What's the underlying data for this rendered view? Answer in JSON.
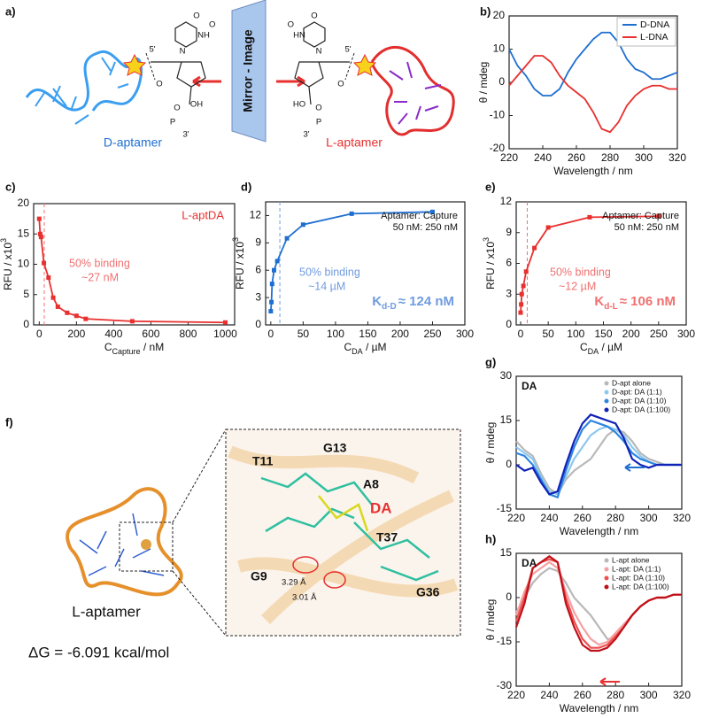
{
  "chart_data": [
    {
      "type": "line",
      "panel_label": "b)",
      "x": [
        220,
        225,
        230,
        235,
        240,
        245,
        250,
        255,
        260,
        265,
        270,
        275,
        280,
        285,
        290,
        295,
        300,
        305,
        310,
        315,
        320
      ],
      "series": [
        {
          "name": "D-DNA",
          "color": "#1f6fd1",
          "values": [
            10,
            5,
            2,
            -2,
            -4,
            -4,
            -2,
            3,
            7,
            10,
            13,
            15,
            15,
            12,
            7,
            4,
            3,
            1,
            1,
            2,
            3
          ]
        },
        {
          "name": "L-DNA",
          "color": "#e8302f",
          "values": [
            -1,
            2,
            5,
            8,
            8,
            6,
            2,
            -1,
            -3,
            -5,
            -9,
            -14,
            -15,
            -12,
            -7,
            -4,
            -2,
            -1,
            -1,
            -2,
            -2
          ]
        }
      ],
      "xlim": [
        220,
        320
      ],
      "xticks": [
        220,
        240,
        260,
        280,
        300,
        320
      ],
      "ylim": [
        -20,
        20
      ],
      "yticks": [
        -20,
        -10,
        0,
        10,
        20
      ],
      "x_label": "Wavelength / nm",
      "y_label": "θ / mdeg",
      "legend": "upper right"
    },
    {
      "type": "scatter",
      "panel_label": "c)",
      "title": "L-aptDA",
      "color": "#e8302f",
      "fit_line": true,
      "x": [
        0,
        5,
        10,
        25,
        50,
        75,
        100,
        150,
        200,
        250,
        500,
        1000
      ],
      "values": [
        17.5,
        15,
        14.5,
        10.2,
        7.8,
        4.5,
        3,
        2,
        1.5,
        1,
        0.6,
        0.4
      ],
      "xlim": [
        -30,
        1050
      ],
      "xticks": [
        0,
        200,
        400,
        600,
        800,
        1000
      ],
      "ylim": [
        0,
        20
      ],
      "yticks": [
        0,
        5,
        10,
        15,
        20
      ],
      "x_label": "C",
      "x_label_sub": "Capture",
      "x_label_unit": " / nM",
      "y_label": "RFU / x10",
      "y_label_sup": "3",
      "marker_x": 27,
      "annotation_color": "#f07070",
      "annotations": [
        "50% binding",
        "~27 nM"
      ]
    },
    {
      "type": "scatter",
      "panel_label": "d)",
      "color": "#1f6fd1",
      "fit_line": true,
      "x": [
        0,
        1,
        2,
        5,
        10,
        25,
        50,
        125,
        250
      ],
      "values": [
        1.5,
        2.5,
        4.5,
        6,
        7,
        9.5,
        11,
        12.2,
        12.4
      ],
      "xlim": [
        -8,
        300
      ],
      "xticks": [
        0,
        50,
        100,
        150,
        200,
        250,
        300
      ],
      "ylim": [
        0,
        13.5
      ],
      "yticks": [
        0,
        3,
        6,
        9,
        12
      ],
      "x_label": "C",
      "x_label_sub": "DA",
      "x_label_unit": " / µM",
      "y_label": "RFU / x10",
      "y_label_sup": "3",
      "marker_x": 14,
      "note": [
        "Aptamer: Capture",
        "50 nM: 250 nM"
      ],
      "annotation_color": "#6f9be0",
      "annotations": [
        "50% binding",
        "~14 µM"
      ],
      "kd_label": {
        "main": "K",
        "sub": "d-D",
        "rest": "≈ 124 nM"
      }
    },
    {
      "type": "scatter",
      "panel_label": "e)",
      "color": "#e8302f",
      "fit_line": true,
      "x": [
        0,
        1,
        2,
        5,
        10,
        25,
        50,
        125,
        250
      ],
      "values": [
        1.2,
        2,
        3,
        3.8,
        5.2,
        7.5,
        9.5,
        10.5,
        10.6
      ],
      "xlim": [
        -8,
        300
      ],
      "xticks": [
        0,
        50,
        100,
        150,
        200,
        250,
        300
      ],
      "ylim": [
        0,
        12
      ],
      "yticks": [
        0,
        3,
        6,
        9,
        12
      ],
      "x_label": "C",
      "x_label_sub": "DA",
      "x_label_unit": " / µM",
      "y_label": "RFU / x10",
      "y_label_sup": "3",
      "marker_x": 12,
      "note": [
        "Aptamer: Capture",
        "50 nM: 250 nM"
      ],
      "annotation_color": "#f07070",
      "annotations": [
        "50% binding",
        "~12 µM"
      ],
      "kd_label": {
        "main": "K",
        "sub": "d-L",
        "rest": "≈ 106 nM"
      }
    },
    {
      "type": "line",
      "panel_label": "g)",
      "label": "DA",
      "x": [
        220,
        225,
        230,
        235,
        240,
        245,
        250,
        255,
        260,
        265,
        270,
        275,
        280,
        285,
        290,
        295,
        300,
        305,
        310,
        315,
        320
      ],
      "series": [
        {
          "name": "D-apt alone",
          "color": "#b8b8b8",
          "values": [
            8,
            5,
            3,
            -3,
            -8,
            -10,
            -5,
            -2,
            0,
            2,
            6,
            10,
            12,
            11,
            8,
            4,
            2,
            1,
            0,
            0,
            0
          ]
        },
        {
          "name": "D-apt: DA (1:1)",
          "color": "#8cc8f0",
          "values": [
            6,
            4,
            2,
            -4,
            -9,
            -10,
            -4,
            2,
            6,
            10,
            12,
            13,
            12,
            10,
            6,
            3,
            1,
            0,
            0,
            0,
            0
          ]
        },
        {
          "name": "D-apt: DA (1:10)",
          "color": "#2f86e0",
          "values": [
            4,
            3,
            0,
            -5,
            -10,
            -11,
            -2,
            6,
            12,
            15,
            14,
            13,
            11,
            8,
            4,
            2,
            1,
            0,
            0,
            0,
            0
          ]
        },
        {
          "name": "D-apt: DA (1:100)",
          "color": "#1022b8",
          "values": [
            0,
            -2,
            -1,
            -6,
            -10,
            -9,
            0,
            8,
            14,
            17,
            16,
            15,
            14,
            9,
            2,
            0,
            -1,
            0,
            0,
            0,
            0
          ]
        }
      ],
      "xlim": [
        220,
        320
      ],
      "xticks": [
        220,
        240,
        260,
        280,
        300,
        320
      ],
      "ylim": [
        -15,
        30
      ],
      "yticks": [
        -15,
        0,
        15,
        30
      ],
      "x_label": "Wavelength / nm",
      "y_label": "θ / mdeg",
      "legend": "upper right"
    },
    {
      "type": "line",
      "panel_label": "h)",
      "label": "DA",
      "x": [
        220,
        225,
        230,
        235,
        240,
        245,
        250,
        255,
        260,
        265,
        270,
        275,
        280,
        285,
        290,
        295,
        300,
        305,
        310,
        315,
        320
      ],
      "series": [
        {
          "name": "L-apt alone",
          "color": "#b8b8b8",
          "values": [
            -5,
            0,
            5,
            8,
            10,
            9,
            5,
            0,
            -3,
            -6,
            -10,
            -14,
            -14,
            -10,
            -6,
            -3,
            -1,
            0,
            0,
            1,
            1
          ]
        },
        {
          "name": "L-apt: DA (1:1)",
          "color": "#f5a0a0",
          "values": [
            -6,
            2,
            8,
            10,
            12,
            10,
            2,
            -5,
            -10,
            -14,
            -16,
            -15,
            -12,
            -9,
            -6,
            -3,
            -1,
            0,
            0,
            1,
            1
          ]
        },
        {
          "name": "L-apt: DA (1:10)",
          "color": "#ee5050",
          "values": [
            -8,
            0,
            10,
            12,
            13,
            12,
            0,
            -8,
            -14,
            -17,
            -17,
            -16,
            -13,
            -10,
            -6,
            -3,
            -1,
            0,
            0,
            1,
            1
          ]
        },
        {
          "name": "L-apt: DA (1:100)",
          "color": "#c01018",
          "values": [
            -10,
            -2,
            10,
            12,
            14,
            12,
            -2,
            -10,
            -16,
            -18,
            -18,
            -17,
            -14,
            -10,
            -6,
            -3,
            -1,
            0,
            0,
            1,
            1
          ]
        }
      ],
      "xlim": [
        220,
        320
      ],
      "xticks": [
        220,
        240,
        260,
        280,
        300,
        320
      ],
      "ylim": [
        -30,
        15
      ],
      "yticks": [
        -30,
        -15,
        0,
        15
      ],
      "x_label": "Wavelength / nm",
      "y_label": "θ / mdeg",
      "legend": "upper right"
    }
  ],
  "panel_a": {
    "label": "a)",
    "mirror": "Mirror - Image",
    "left_name": "D-aptamer",
    "right_name": "L-aptamer",
    "left_chem": [
      "O",
      "NH",
      "N",
      "O",
      "5'",
      "O",
      "OH",
      "O",
      "P",
      "3'"
    ],
    "right_chem": [
      "O",
      "HN",
      "N",
      "O",
      "5'",
      "O",
      "HO",
      "O",
      "P",
      "3'"
    ]
  },
  "panel_f": {
    "label": "f)",
    "left_name": "L-aptamer",
    "energy": "ΔG = -6.091 kcal/mol",
    "residues": [
      "T11",
      "G13",
      "A8",
      "DA",
      "T37",
      "G9",
      "G36"
    ],
    "distances": [
      "3.29 Å",
      "3.01 Å"
    ]
  }
}
